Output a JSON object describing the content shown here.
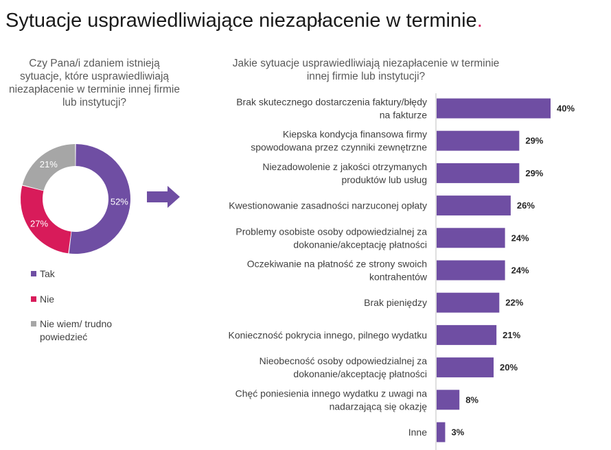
{
  "title": "Sytuacje usprawiedliwiające niezapłacenie w terminie",
  "title_dot": ".",
  "left_question": "Czy Pana/i zdaniem istnieją sytuacje, które usprawiedliwiają niezapłacenie w terminie innej firmie lub instytucji?",
  "right_question": "Jakie sytuacje usprawiedliwiają niezapłacenie w terminie innej firmie lub instytucji?",
  "colors": {
    "accent": "#d81b60",
    "purple": "#6f4ea3",
    "red": "#d81b5a",
    "gray": "#a6a6a6"
  },
  "chart_data": [
    {
      "type": "pie",
      "title": "Czy Pana/i zdaniem istnieją sytuacje, które usprawiedliwiają niezapłacenie w terminie innej firmie lub instytucji?",
      "donut": true,
      "labels": [
        "Tak",
        "Nie",
        "Nie wiem/ trudno powiedzieć"
      ],
      "values": [
        52,
        27,
        21
      ],
      "data_labels": [
        "52%",
        "27%",
        "21%"
      ],
      "colors": [
        "#6f4ea3",
        "#d81b5a",
        "#a6a6a6"
      ],
      "legend": "bottom-left"
    },
    {
      "type": "bar",
      "orientation": "horizontal",
      "title": "Jakie sytuacje usprawiedliwiają niezapłacenie w terminie innej firmie lub instytucji?",
      "categories": [
        [
          "Brak skutecznego dostarczenia faktury/błędy",
          "na fakturze"
        ],
        [
          "Kiepska kondycja finansowa firmy",
          "spowodowana przez czynniki zewnętrzne"
        ],
        [
          "Niezadowolenie z jakości otrzymanych",
          "produktów lub usług"
        ],
        [
          "Kwestionowanie zasadności narzuconej opłaty"
        ],
        [
          "Problemy osobiste osoby odpowiedzialnej za",
          "dokonanie/akceptację płatności"
        ],
        [
          "Oczekiwanie na płatność ze strony swoich",
          "kontrahentów"
        ],
        [
          "Brak pieniędzy"
        ],
        [
          "Konieczność pokrycia innego, pilnego wydatku"
        ],
        [
          "Nieobecność osoby odpowiedzialnej za",
          "dokonanie/akceptację płatności"
        ],
        [
          "Chęć poniesienia innego wydatku z uwagi na",
          "nadarzającą się okazję"
        ],
        [
          "Inne"
        ]
      ],
      "values": [
        40,
        29,
        29,
        26,
        24,
        24,
        22,
        21,
        20,
        8,
        3
      ],
      "data_labels": [
        "40%",
        "29%",
        "29%",
        "26%",
        "24%",
        "24%",
        "22%",
        "21%",
        "20%",
        "8%",
        "3%"
      ],
      "color": "#6f4ea3",
      "xlim": [
        0,
        100
      ],
      "grid": false
    }
  ]
}
